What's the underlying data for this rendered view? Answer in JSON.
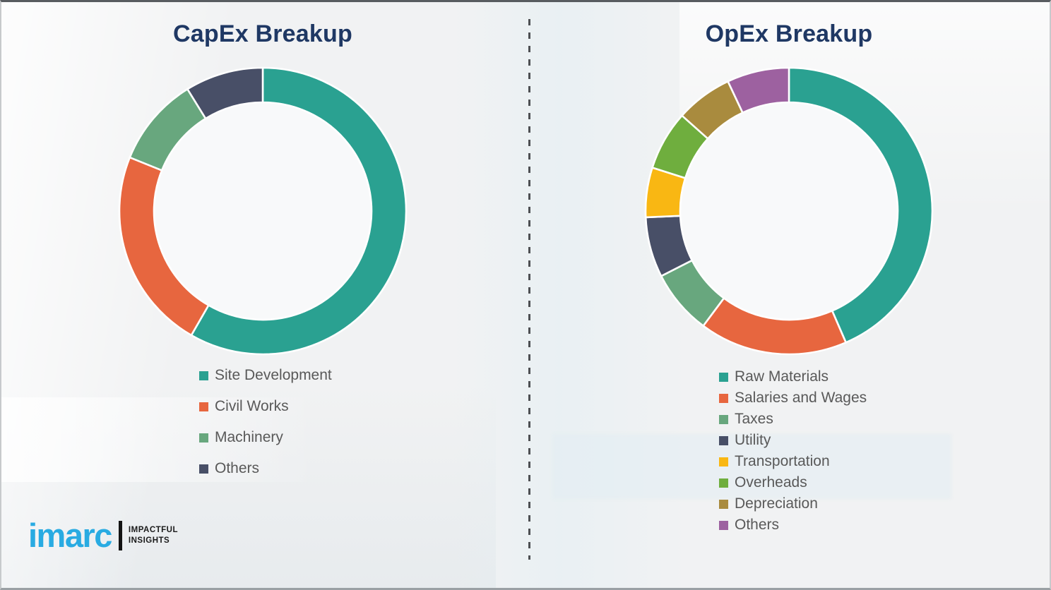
{
  "theme": {
    "background_color": "#F1F2F3",
    "title_color": "#1F3864",
    "legend_text_color": "#595959",
    "divider_color": "#4D4F52",
    "segment_gap_color": "#FFFFFF"
  },
  "chart_data": [
    {
      "type": "pie",
      "subtype": "donut",
      "title": "CapEx Breakup",
      "labels": [
        "Site Development",
        "Civil Works",
        "Machinery",
        "Others"
      ],
      "values": [
        58.3,
        22.8,
        10.1,
        8.8
      ],
      "unit": "%",
      "colors": [
        "#2AA191",
        "#E7663F",
        "#68A77E",
        "#484F67"
      ],
      "hole_color": "#F8F9FA",
      "start_angle_deg": 0,
      "direction": "clockwise",
      "donut_hole_ratio": 0.76,
      "legend_position": "below-left"
    },
    {
      "type": "pie",
      "subtype": "donut",
      "title": "OpEx Breakup",
      "labels": [
        "Raw Materials",
        "Salaries and Wages",
        "Taxes",
        "Utility",
        "Transportation",
        "Overheads",
        "Depreciation",
        "Others"
      ],
      "values": [
        43.5,
        16.7,
        7.3,
        6.8,
        5.6,
        6.7,
        6.4,
        7.0
      ],
      "unit": "%",
      "colors": [
        "#2AA191",
        "#E7663F",
        "#68A77E",
        "#484F67",
        "#F9B713",
        "#6FAE3E",
        "#A98B3E",
        "#9D61A0"
      ],
      "hole_color": "#F8F9FA",
      "start_angle_deg": 0,
      "direction": "clockwise",
      "donut_hole_ratio": 0.76,
      "legend_position": "below-left"
    }
  ],
  "logo": {
    "brand": "imarc",
    "tagline_line1": "IMPACTFUL",
    "tagline_line2": "INSIGHTS",
    "brand_color": "#29ABE2",
    "tagline_color": "#1A1A1A"
  }
}
